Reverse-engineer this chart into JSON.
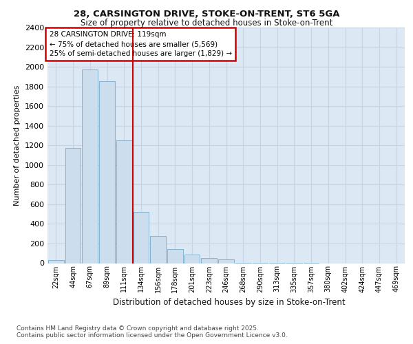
{
  "title_line1": "28, CARSINGTON DRIVE, STOKE-ON-TRENT, ST6 5GA",
  "title_line2": "Size of property relative to detached houses in Stoke-on-Trent",
  "xlabel": "Distribution of detached houses by size in Stoke-on-Trent",
  "ylabel": "Number of detached properties",
  "footer_line1": "Contains HM Land Registry data © Crown copyright and database right 2025.",
  "footer_line2": "Contains public sector information licensed under the Open Government Licence v3.0.",
  "annotation_title": "28 CARSINGTON DRIVE: 119sqm",
  "annotation_line1": "← 75% of detached houses are smaller (5,569)",
  "annotation_line2": "25% of semi-detached houses are larger (1,829) →",
  "categories": [
    "22sqm",
    "44sqm",
    "67sqm",
    "89sqm",
    "111sqm",
    "134sqm",
    "156sqm",
    "178sqm",
    "201sqm",
    "223sqm",
    "246sqm",
    "268sqm",
    "290sqm",
    "313sqm",
    "335sqm",
    "357sqm",
    "380sqm",
    "402sqm",
    "424sqm",
    "447sqm",
    "469sqm"
  ],
  "values": [
    30,
    1175,
    1975,
    1850,
    1250,
    520,
    275,
    145,
    85,
    50,
    40,
    5,
    2,
    1,
    1,
    1,
    0,
    0,
    0,
    0,
    0
  ],
  "bar_color": "#ccdded",
  "bar_edge_color": "#7aaac8",
  "grid_color": "#c8d4e4",
  "background_color": "#dce8f4",
  "vline_color": "#cc0000",
  "annotation_box_color": "#cc0000",
  "ylim": [
    0,
    2400
  ],
  "yticks": [
    0,
    200,
    400,
    600,
    800,
    1000,
    1200,
    1400,
    1600,
    1800,
    2000,
    2200,
    2400
  ],
  "vline_pos": 4.5,
  "fig_bg": "#ffffff"
}
